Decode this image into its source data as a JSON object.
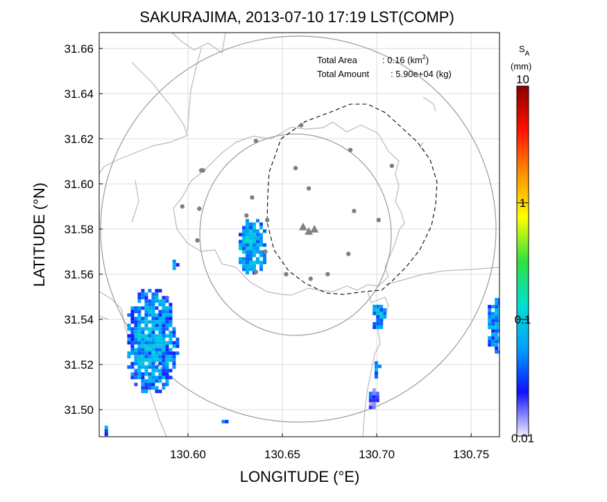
{
  "chart_data": {
    "type": "heatmap",
    "title": "SAKURAJIMA, 2013-07-10 17:19 LST(COMP)",
    "xlabel": "LONGITUDE (°E)",
    "ylabel": "LATITUDE (°N)",
    "xlim": [
      130.553,
      130.765
    ],
    "ylim": [
      31.488,
      31.667
    ],
    "x_ticks": [
      "130.60",
      "130.65",
      "130.70",
      "130.75"
    ],
    "y_ticks": [
      "31.66",
      "31.64",
      "31.62",
      "31.60",
      "31.58",
      "31.56",
      "31.54",
      "31.52",
      "31.50"
    ],
    "grid": true,
    "annotation": {
      "total_area_label": "Total Area",
      "total_area_value": ": 0.16 (km",
      "total_area_sup": "2",
      "total_area_close": ")",
      "total_amount_label": "Total Amount",
      "total_amount_value": ": 5.90e+04 (kg)"
    },
    "colorbar": {
      "label_main": "S",
      "label_sub": "A",
      "unit": "(mm)",
      "scale": "log",
      "range": [
        0.01,
        10
      ],
      "tick_labels": [
        "10",
        "1",
        "0.1",
        "0.01"
      ],
      "stops": [
        "#f0f0ff",
        "#1010ff",
        "#00a0ff",
        "#00e0d0",
        "#30e040",
        "#ffff00",
        "#ff9000",
        "#ff1000",
        "#8b0000"
      ]
    },
    "vent_markers": [
      [
        130.661,
        31.581
      ],
      [
        130.664,
        31.579
      ],
      [
        130.667,
        31.58
      ]
    ],
    "stations": [
      [
        130.636,
        31.619
      ],
      [
        130.66,
        31.626
      ],
      [
        130.686,
        31.615
      ],
      [
        130.708,
        31.608
      ],
      [
        130.608,
        31.606
      ],
      [
        130.607,
        31.606
      ],
      [
        130.657,
        31.607
      ],
      [
        130.664,
        31.598
      ],
      [
        130.634,
        31.594
      ],
      [
        130.597,
        31.59
      ],
      [
        130.606,
        31.589
      ],
      [
        130.688,
        31.588
      ],
      [
        130.631,
        31.586
      ],
      [
        130.642,
        31.584
      ],
      [
        130.701,
        31.584
      ],
      [
        130.605,
        31.575
      ],
      [
        130.641,
        31.57
      ],
      [
        130.685,
        31.569
      ],
      [
        130.636,
        31.561
      ],
      [
        130.652,
        31.56
      ],
      [
        130.674,
        31.56
      ],
      [
        130.665,
        31.558
      ]
    ],
    "rings": [
      {
        "center": [
          130.661,
          31.581
        ],
        "radius_deg_lon": 0.057,
        "radius_deg_lat": 0.048
      },
      {
        "center": [
          130.661,
          31.578
        ],
        "radius_deg_lon": 0.106,
        "radius_deg_lat": 0.09
      }
    ],
    "echo_regions": [
      {
        "center": [
          130.633,
          31.573
        ],
        "extent": [
          0.008,
          0.013
        ],
        "value": 0.07
      },
      {
        "center": [
          130.58,
          31.531
        ],
        "extent": [
          0.014,
          0.024
        ],
        "value": 0.06
      },
      {
        "center": [
          130.7,
          31.542
        ],
        "extent": [
          0.004,
          0.006
        ],
        "value": 0.06
      },
      {
        "center": [
          130.763,
          31.538
        ],
        "extent": [
          0.006,
          0.013
        ],
        "value": 0.05
      },
      {
        "center": [
          130.699,
          31.519
        ],
        "extent": [
          0.002,
          0.004
        ],
        "value": 0.04
      },
      {
        "center": [
          130.697,
          31.506
        ],
        "extent": [
          0.003,
          0.005
        ],
        "value": 0.03
      },
      {
        "center": [
          130.592,
          31.565
        ],
        "extent": [
          0.002,
          0.003
        ],
        "value": 0.05
      },
      {
        "center": [
          130.556,
          31.492
        ],
        "extent": [
          0.002,
          0.004
        ],
        "value": 0.04
      },
      {
        "center": [
          130.618,
          31.496
        ],
        "extent": [
          0.002,
          0.001
        ],
        "value": 0.03
      }
    ]
  }
}
